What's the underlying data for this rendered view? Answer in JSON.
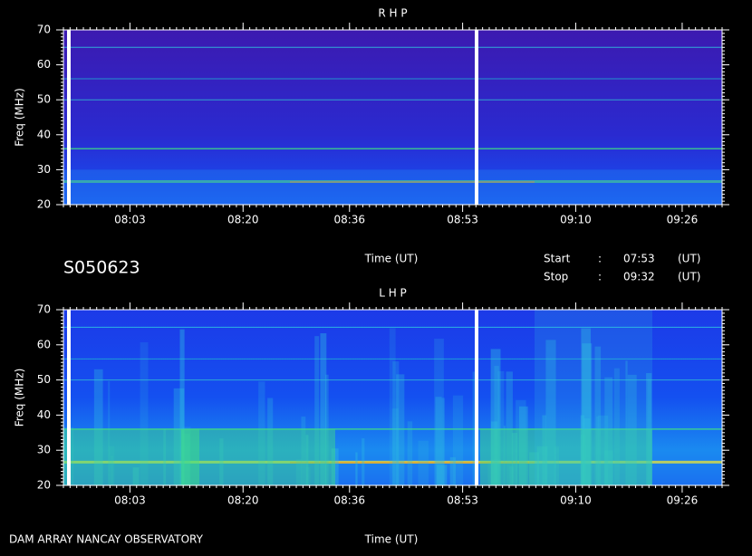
{
  "header": {
    "title": "S050623",
    "start_label": "Start",
    "start_sep": ":",
    "start": "07:53",
    "start_unit": "(UT)",
    "stop_label": "Stop",
    "stop_sep": ":",
    "stop": "09:32",
    "stop_unit": "(UT)"
  },
  "footer": {
    "text": "DAM ARRAY  NANCAY OBSERVATORY"
  },
  "chart_data": [
    {
      "type": "spectrogram",
      "title": "R H P",
      "xlabel": "Time (UT)",
      "ylabel": "Freq (MHz)",
      "xlim": [
        "07:53",
        "09:32"
      ],
      "ylim": [
        20,
        70
      ],
      "yticks": [
        20,
        30,
        40,
        50,
        60,
        70
      ],
      "xticks": [
        "08:03",
        "08:20",
        "08:36",
        "08:53",
        "09:10",
        "09:26"
      ]
    },
    {
      "type": "spectrogram",
      "title": "L H P",
      "xlabel": "Time (UT)",
      "ylabel": "Freq (MHz)",
      "xlim": [
        "07:53",
        "09:32"
      ],
      "ylim": [
        20,
        70
      ],
      "yticks": [
        20,
        30,
        40,
        50,
        60,
        70
      ],
      "xticks": [
        "08:03",
        "08:20",
        "08:36",
        "08:53",
        "09:10",
        "09:26"
      ]
    }
  ]
}
